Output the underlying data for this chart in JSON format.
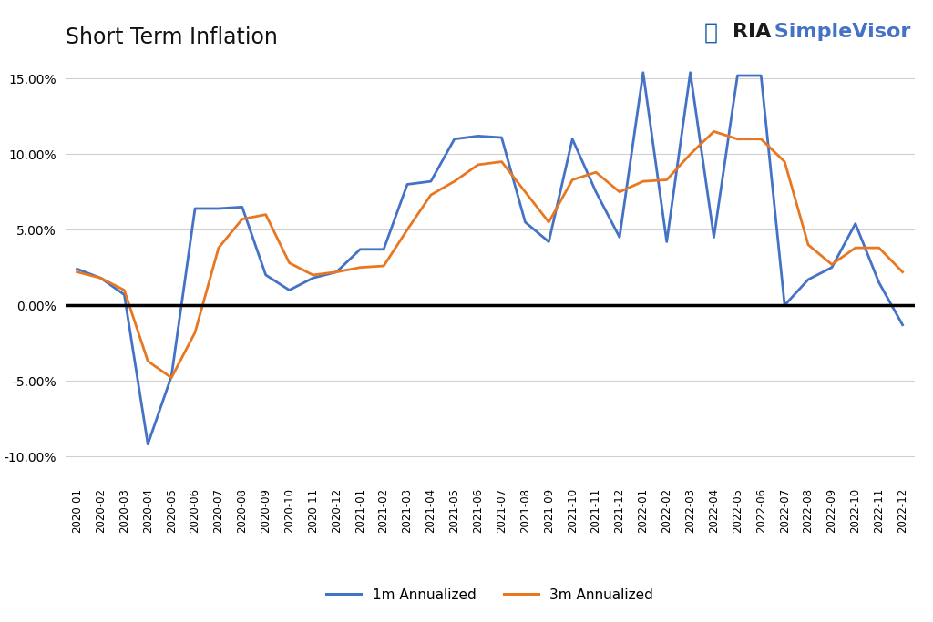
{
  "title": "Short Term Inflation",
  "title_fontsize": 17,
  "background_color": "#ffffff",
  "line1_color": "#4472C4",
  "line2_color": "#E87722",
  "line1_label": "1m Annualized",
  "line2_label": "3m Annualized",
  "ylim": [
    -0.115,
    0.165
  ],
  "yticks": [
    -0.1,
    -0.05,
    0.0,
    0.05,
    0.1,
    0.15
  ],
  "dates": [
    "2020-01",
    "2020-02",
    "2020-03",
    "2020-04",
    "2020-05",
    "2020-06",
    "2020-07",
    "2020-08",
    "2020-09",
    "2020-10",
    "2020-11",
    "2020-12",
    "2021-01",
    "2021-02",
    "2021-03",
    "2021-04",
    "2021-05",
    "2021-06",
    "2021-07",
    "2021-08",
    "2021-09",
    "2021-10",
    "2021-11",
    "2021-12",
    "2022-01",
    "2022-02",
    "2022-03",
    "2022-04",
    "2022-05",
    "2022-06",
    "2022-07",
    "2022-08",
    "2022-09",
    "2022-10",
    "2022-11",
    "2022-12"
  ],
  "series1": [
    0.024,
    0.018,
    0.007,
    -0.092,
    -0.047,
    0.064,
    0.064,
    0.065,
    0.02,
    0.01,
    0.018,
    0.022,
    0.037,
    0.037,
    0.08,
    0.082,
    0.11,
    0.112,
    0.111,
    0.055,
    0.042,
    0.11,
    0.075,
    0.045,
    0.154,
    0.042,
    0.154,
    0.045,
    0.152,
    0.152,
    0.0,
    0.017,
    0.025,
    0.054,
    0.015,
    -0.013
  ],
  "series2": [
    0.022,
    0.018,
    0.01,
    -0.037,
    -0.048,
    -0.018,
    0.038,
    0.057,
    0.06,
    0.028,
    0.02,
    0.022,
    0.025,
    0.026,
    0.05,
    0.073,
    0.082,
    0.093,
    0.095,
    0.075,
    0.055,
    0.083,
    0.088,
    0.075,
    0.082,
    0.083,
    0.1,
    0.115,
    0.11,
    0.11,
    0.095,
    0.04,
    0.027,
    0.038,
    0.038,
    0.022
  ],
  "logo_text_ria": "RIA",
  "logo_text_sv": " SimpleVisor",
  "logo_color_ria": "#1a1a1a",
  "logo_color_sv": "#4472C4"
}
